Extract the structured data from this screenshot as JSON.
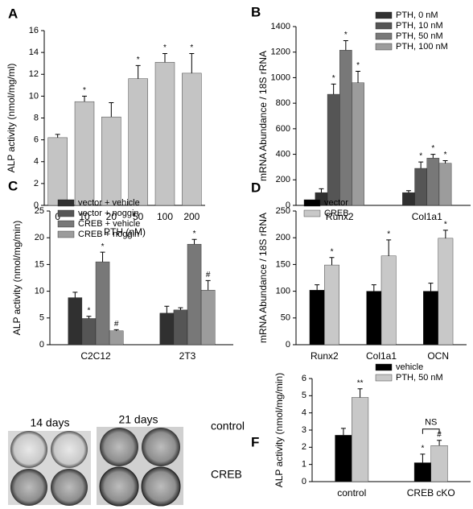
{
  "chart_data": [
    {
      "type": "bar",
      "label": "A",
      "ylabel": "ALP activity (nmol/mg/ml)",
      "xlabel": "PTH (nM)",
      "categories": [
        "0",
        "10",
        "20",
        "50",
        "100",
        "200"
      ],
      "values": [
        6.2,
        9.5,
        8.1,
        11.6,
        13.1,
        12.1
      ],
      "errors": [
        0.3,
        0.5,
        1.3,
        1.2,
        0.8,
        1.8
      ],
      "annotations": [
        null,
        "*",
        null,
        "*",
        "*",
        "*"
      ],
      "color": "#c4c4c4",
      "ylim": [
        0,
        16
      ],
      "yticks": [
        0,
        2,
        4,
        6,
        8,
        10,
        12,
        14,
        16
      ]
    },
    {
      "type": "bar",
      "label": "B",
      "ylabel": "mRNA Abundance / 18S rRNA",
      "categories": [
        "Runx2",
        "Col1a1"
      ],
      "legend": "upper right",
      "series": [
        {
          "name": "PTH, 0 nM",
          "color": "#303030",
          "values": [
            100,
            100
          ],
          "errors": [
            30,
            15
          ],
          "annotations": [
            null,
            null
          ]
        },
        {
          "name": "PTH, 10 nM",
          "color": "#555555",
          "values": [
            870,
            290
          ],
          "errors": [
            80,
            50
          ],
          "annotations": [
            "*",
            "*"
          ]
        },
        {
          "name": "PTH, 50 nM",
          "color": "#787878",
          "values": [
            1215,
            370
          ],
          "errors": [
            75,
            30
          ],
          "annotations": [
            "*",
            "*"
          ]
        },
        {
          "name": "PTH, 100 nM",
          "color": "#9c9c9c",
          "values": [
            960,
            330
          ],
          "errors": [
            90,
            20
          ],
          "annotations": [
            "*",
            "*"
          ]
        }
      ],
      "ylim": [
        0,
        1400
      ],
      "yticks": [
        0,
        200,
        400,
        600,
        800,
        1000,
        1200,
        1400
      ]
    },
    {
      "type": "bar",
      "label": "C",
      "ylabel": "ALP activity (nmol/mg/min)",
      "categories": [
        "C2C12",
        "2T3"
      ],
      "legend": "upper left",
      "series": [
        {
          "name": "vector + vehicle",
          "color": "#303030",
          "values": [
            8.8,
            5.9
          ],
          "errors": [
            1.0,
            1.3
          ],
          "annotations": [
            null,
            null
          ]
        },
        {
          "name": "vector + noggin",
          "color": "#555555",
          "values": [
            4.9,
            6.5
          ],
          "errors": [
            0.4,
            0.4
          ],
          "annotations": [
            "*",
            null
          ]
        },
        {
          "name": "CREB + vehicle",
          "color": "#787878",
          "values": [
            15.5,
            18.8
          ],
          "errors": [
            1.8,
            0.9
          ],
          "annotations": [
            "*",
            "*"
          ]
        },
        {
          "name": "CREB + noggin",
          "color": "#9c9c9c",
          "values": [
            2.6,
            10.2
          ],
          "errors": [
            0.2,
            1.8
          ],
          "annotations": [
            "#",
            "#"
          ]
        }
      ],
      "ylim": [
        0,
        25
      ],
      "yticks": [
        0,
        5,
        10,
        15,
        20,
        25
      ]
    },
    {
      "type": "bar",
      "label": "D",
      "ylabel": "mRNA Abundance / 18S rRNA",
      "categories": [
        "Runx2",
        "Col1a1",
        "OCN"
      ],
      "legend": "upper left",
      "series": [
        {
          "name": "vector",
          "color": "#000000",
          "values": [
            102,
            100,
            100
          ],
          "errors": [
            10,
            12,
            15
          ],
          "annotations": [
            null,
            null,
            null
          ]
        },
        {
          "name": "CREB",
          "color": "#c8c8c8",
          "values": [
            149,
            166,
            199
          ],
          "errors": [
            14,
            30,
            15
          ],
          "annotations": [
            "*",
            "*",
            "*"
          ]
        }
      ],
      "ylim": [
        0,
        250
      ],
      "yticks": [
        0,
        50,
        100,
        150,
        200,
        250
      ]
    },
    {
      "type": "bar",
      "label": "F",
      "ylabel": "ALP activity (nmol/mg/min)",
      "categories": [
        "control",
        "CREB cKO"
      ],
      "legend": "upper right",
      "bracket_label": "NS",
      "series": [
        {
          "name": "vehicle",
          "color": "#000000",
          "values": [
            2.7,
            1.1
          ],
          "errors": [
            0.4,
            0.5
          ],
          "annotations": [
            null,
            "*"
          ]
        },
        {
          "name": "PTH, 50 nM",
          "color": "#c8c8c8",
          "values": [
            4.9,
            2.1
          ],
          "errors": [
            0.5,
            0.3
          ],
          "annotations": [
            "**",
            "#"
          ]
        }
      ],
      "ylim": [
        0,
        6
      ],
      "yticks": [
        0,
        1,
        2,
        3,
        4,
        5,
        6
      ]
    }
  ],
  "panel_e": {
    "label": "E",
    "columns": [
      "14 days",
      "21 days"
    ],
    "rows": [
      "control",
      "CREB"
    ]
  }
}
